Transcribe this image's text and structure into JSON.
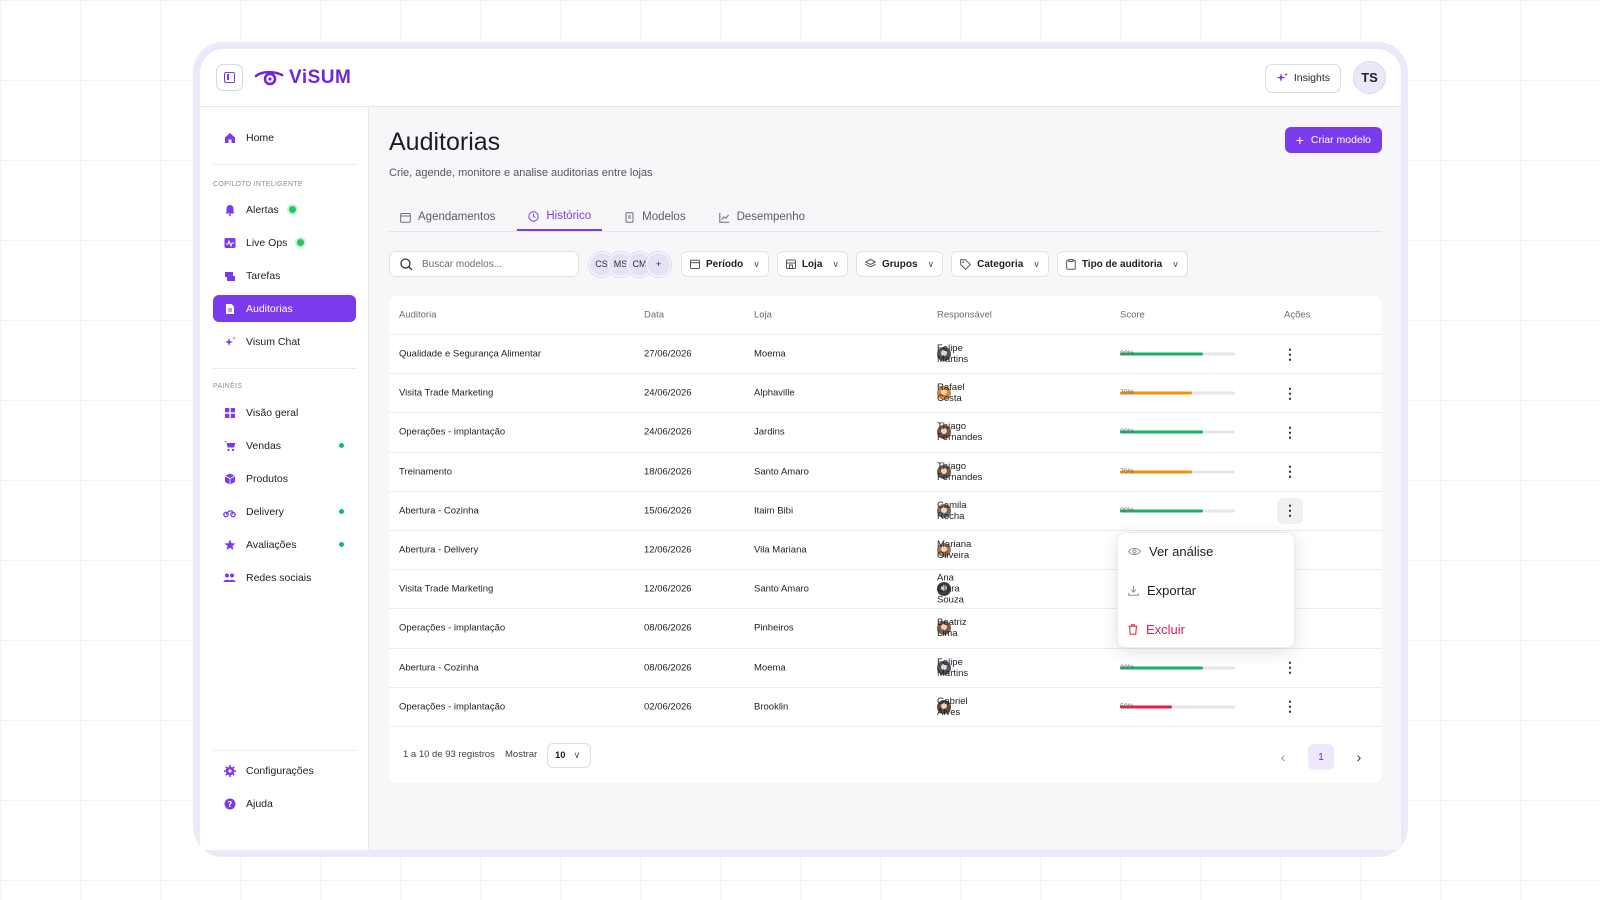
{
  "brand": {
    "name": "ViSUM",
    "accent": "#7c3aed"
  },
  "header": {
    "insights_label": "Insights",
    "user_initials": "TS"
  },
  "sidebar": {
    "home": "Home",
    "section_copilot": "COPILOTO INTELIGENTE",
    "alertas": "Alertas",
    "live_ops": "Live Ops",
    "tarefas": "Tarefas",
    "auditorias": "Auditorias",
    "visum_chat": "Visum Chat",
    "section_paineis": "PAINÉIS",
    "visao_geral": "Visão geral",
    "vendas": "Vendas",
    "produtos": "Produtos",
    "delivery": "Delivery",
    "avaliacoes": "Avaliações",
    "redes_sociais": "Redes sociais",
    "configuracoes": "Configurações",
    "ajuda": "Ajuda"
  },
  "page": {
    "title": "Auditorias",
    "subtitle": "Crie, agende, monitore e analise auditorias entre lojas",
    "create_button": "Criar modelo"
  },
  "tabs": [
    "Agendamentos",
    "Histórico",
    "Modelos",
    "Desempenho"
  ],
  "filters": {
    "search_placeholder": "Buscar modelos...",
    "chips": [
      "CS",
      "MS",
      "CM",
      "+"
    ],
    "periodo": "Período",
    "loja": "Loja",
    "grupos": "Grupos",
    "categoria": "Categoria",
    "tipo": "Tipo de auditoria"
  },
  "table": {
    "headers": [
      "Auditoria",
      "Data",
      "Loja",
      "Responsável",
      "Score",
      "Ações"
    ],
    "rows": [
      {
        "auditoria": "Qualidade e Segurança Alimentar",
        "data": "27/06/2026",
        "loja": "Moema",
        "responsavel": "Felipe Martins",
        "score": 80,
        "score_label": "80%"
      },
      {
        "auditoria": "Visita Trade Marketing",
        "data": "24/06/2026",
        "loja": "Alphaville",
        "responsavel": "Rafael Costa",
        "score": 70,
        "score_label": "70%"
      },
      {
        "auditoria": "Operações - implantação",
        "data": "24/06/2026",
        "loja": "Jardins",
        "responsavel": "Thiago Fernandes",
        "score": 80,
        "score_label": "80%"
      },
      {
        "auditoria": "Treinamento",
        "data": "18/06/2026",
        "loja": "Santo Amaro",
        "responsavel": "Thiago Fernandes",
        "score": 70,
        "score_label": "70%"
      },
      {
        "auditoria": "Abertura - Cozinha",
        "data": "15/06/2026",
        "loja": "Itaim Bibi",
        "responsavel": "Camila Rocha",
        "score": 80,
        "score_label": "80%"
      },
      {
        "auditoria": "Abertura - Delivery",
        "data": "12/06/2026",
        "loja": "Vila Mariana",
        "responsavel": "Mariana Oliveira",
        "score": null,
        "score_label": ""
      },
      {
        "auditoria": "Visita Trade Marketing",
        "data": "12/06/2026",
        "loja": "Santo Amaro",
        "responsavel": "Ana Clara Souza",
        "score": null,
        "score_label": ""
      },
      {
        "auditoria": "Operações - implantação",
        "data": "08/06/2026",
        "loja": "Pinheiros",
        "responsavel": "Beatriz Lima",
        "score": null,
        "score_label": ""
      },
      {
        "auditoria": "Abertura - Cozinha",
        "data": "08/06/2026",
        "loja": "Moema",
        "responsavel": "Felipe Martins",
        "score": 80,
        "score_label": "80%"
      },
      {
        "auditoria": "Operações - implantação",
        "data": "02/06/2026",
        "loja": "Brooklin",
        "responsavel": "Gabriel Alves",
        "score": 50,
        "score_label": "50%"
      }
    ]
  },
  "score_colors": {
    "high": "#16b364",
    "mid": "#f79009",
    "low": "#e11d48"
  },
  "pagination": {
    "info": "1 a 10 de 93 registros",
    "show_label": "Mostrar",
    "page_size": "10",
    "current_page": "1"
  },
  "action_menu": {
    "view": "Ver análise",
    "export": "Exportar",
    "delete": "Excluir"
  }
}
